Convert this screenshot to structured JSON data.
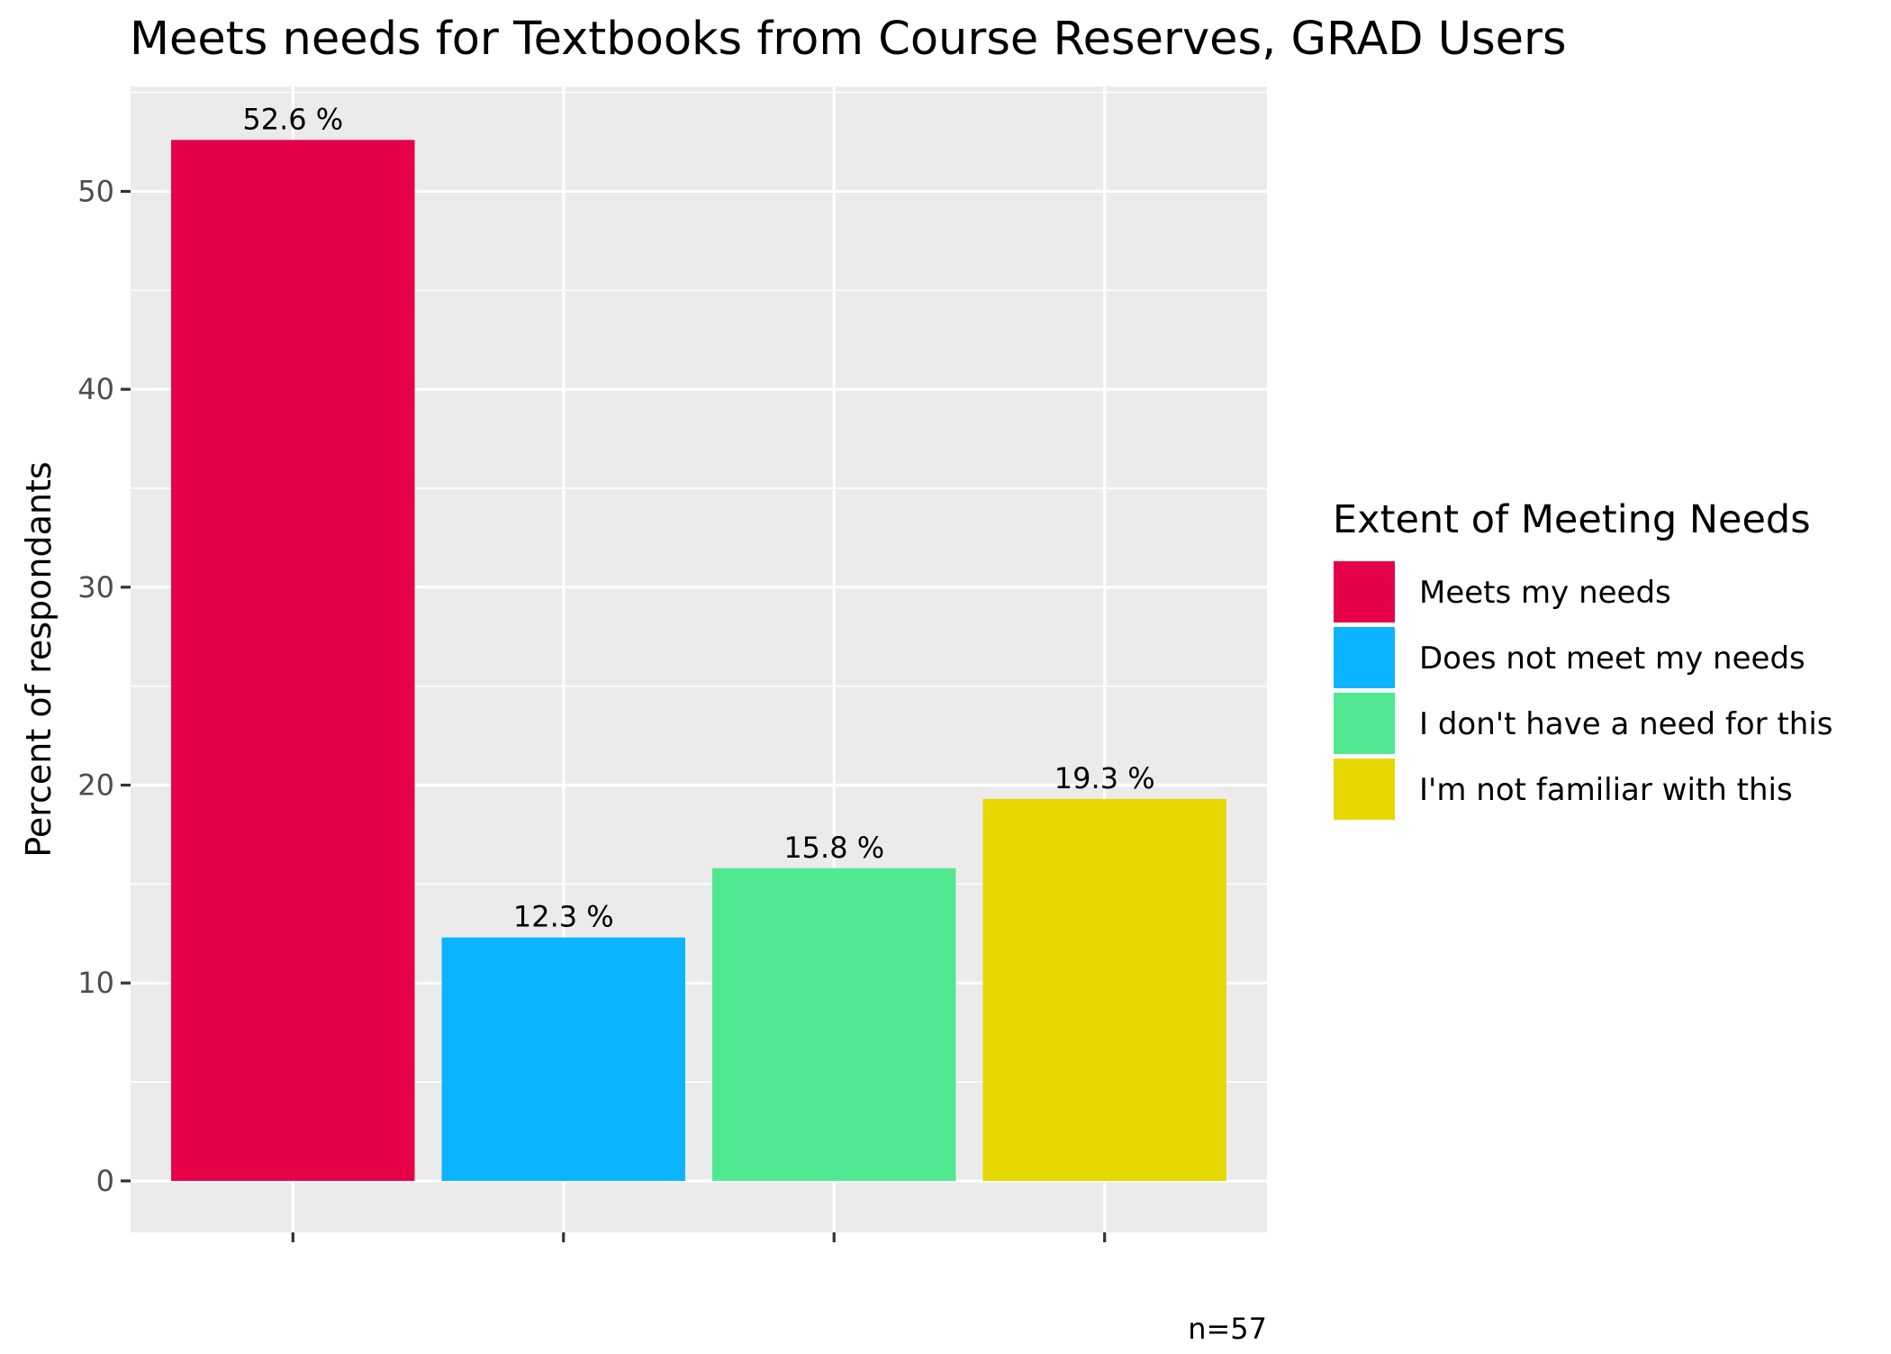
{
  "chart_data": {
    "type": "bar",
    "title": "Meets needs for Textbooks from Course Reserves, GRAD Users",
    "xlabel": "",
    "ylabel": "Percent of respondants",
    "ylim": [
      -2.6,
      55.3
    ],
    "yticks": [
      0,
      10,
      20,
      30,
      40,
      50
    ],
    "grid": true,
    "legend": {
      "title": "Extent of Meeting Needs",
      "placement": "right"
    },
    "categories": [
      "Meets my needs",
      "Does not meet my needs",
      "I don't have a need for this",
      "I'm not familiar with this"
    ],
    "values": [
      52.6,
      12.3,
      15.8,
      19.3
    ],
    "data_labels": [
      "52.6 %",
      "12.3 %",
      "15.8 %",
      "19.3 %"
    ],
    "colors": [
      "#e60049",
      "#0bb4ff",
      "#50e991",
      "#e6d800"
    ],
    "caption": "n=57"
  }
}
